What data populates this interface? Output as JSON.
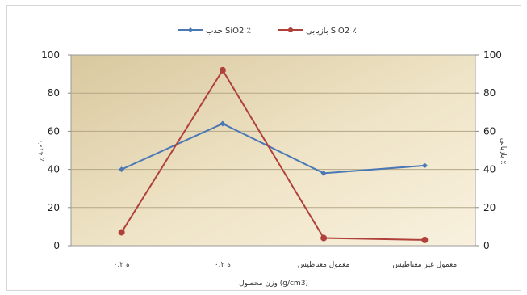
{
  "chart_data": {
    "type": "line",
    "categories": [
      "۰.۲ ه",
      "۰.۲ ه",
      "معمول مغناطیس",
      "معمول غیر مغناطیس"
    ],
    "series": [
      {
        "name": "جذب SiO2 ٪",
        "axis": "left",
        "color": "#4a78b5",
        "values": [
          40,
          64,
          38,
          42
        ]
      },
      {
        "name": "بازیابی SiO2 ٪",
        "axis": "right",
        "color": "#b0403a",
        "values": [
          7,
          92,
          4,
          3
        ]
      }
    ],
    "ylim": [
      0,
      100
    ],
    "y2lim": [
      0,
      100
    ],
    "yticks": [
      "0",
      "20",
      "40",
      "60",
      "80",
      "100"
    ],
    "y2ticks": [
      "0",
      "20",
      "40",
      "60",
      "80",
      "100"
    ],
    "xlabel": "وزن محصول (g/cm3)",
    "ylabel": "جذب ٪",
    "y2label": "بازیابی ٪",
    "grid": true,
    "legend_position": "top"
  }
}
